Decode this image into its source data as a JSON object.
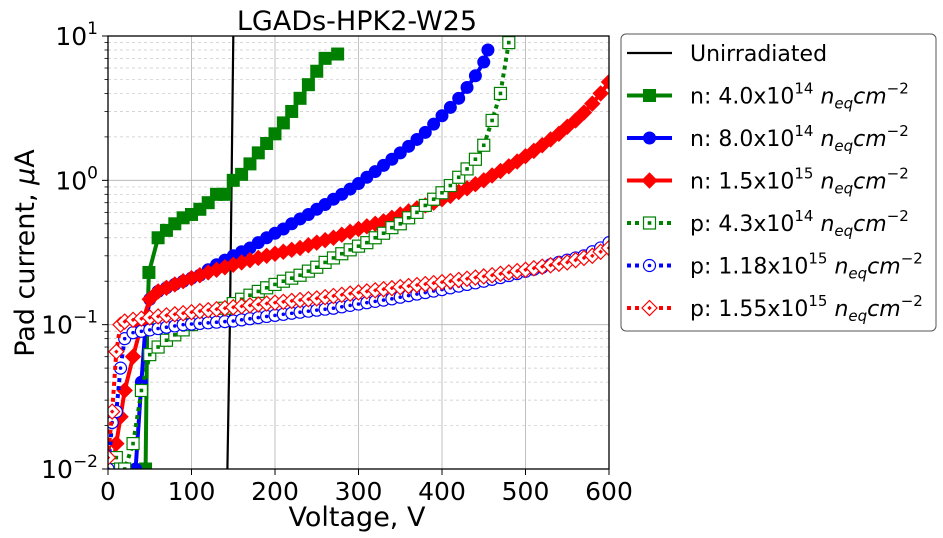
{
  "chart_data": {
    "type": "line",
    "title": "LGADs-HPK2-W25",
    "xlabel": "Voltage, V",
    "ylabel_parts": [
      "Pad current, ",
      "μ",
      "A"
    ],
    "xlim": [
      0,
      600
    ],
    "ylim_log10": [
      -2,
      1
    ],
    "yscale": "log",
    "grid": true,
    "legend_position": "outside-right",
    "x_ticks": [
      {
        "value": 0,
        "label": "0"
      },
      {
        "value": 100,
        "label": "100"
      },
      {
        "value": 200,
        "label": "200"
      },
      {
        "value": 300,
        "label": "300"
      },
      {
        "value": 400,
        "label": "400"
      },
      {
        "value": 500,
        "label": "500"
      },
      {
        "value": 600,
        "label": "600"
      }
    ],
    "y_ticks": [
      {
        "value": 0.01,
        "base": "10",
        "exp": "−2"
      },
      {
        "value": 0.1,
        "base": "10",
        "exp": "−1"
      },
      {
        "value": 1,
        "base": "10",
        "exp": "0"
      },
      {
        "value": 10,
        "base": "10",
        "exp": "1"
      }
    ],
    "series": [
      {
        "name": "Unirradiated",
        "legend": {
          "prefix": "Unirradiated",
          "mantissa": "",
          "exp": ""
        },
        "color": "#000000",
        "dash": "solid",
        "marker": "none",
        "filled": true,
        "width": 2.2,
        "x": [
          143,
          145,
          146,
          147,
          148,
          149,
          150
        ],
        "y": [
          0.01,
          0.05,
          0.1,
          0.3,
          1.0,
          3.0,
          10.0
        ]
      },
      {
        "name": "n: 4.0x10^14 neq cm^-2",
        "legend": {
          "prefix": "n: ",
          "mantissa": "4.0x10",
          "exp": "14"
        },
        "color": "#008000",
        "dash": "solid",
        "marker": "square",
        "filled": true,
        "width": 4,
        "x": [
          45,
          47,
          49,
          60,
          70,
          80,
          90,
          100,
          110,
          120,
          130,
          140,
          150,
          160,
          170,
          180,
          190,
          200,
          210,
          220,
          230,
          240,
          250,
          260,
          275
        ],
        "y": [
          0.01,
          0.1,
          0.23,
          0.4,
          0.45,
          0.5,
          0.55,
          0.58,
          0.63,
          0.7,
          0.8,
          0.8,
          1.0,
          1.1,
          1.3,
          1.55,
          1.8,
          2.1,
          2.5,
          3.0,
          3.7,
          4.6,
          5.7,
          7.0,
          7.5
        ]
      },
      {
        "name": "n: 8.0x10^14 neq cm^-2",
        "legend": {
          "prefix": "n: ",
          "mantissa": "8.0x10",
          "exp": "14"
        },
        "color": "#0000ff",
        "dash": "solid",
        "marker": "circle",
        "filled": true,
        "width": 4,
        "x": [
          33,
          40,
          45,
          50,
          60,
          70,
          80,
          90,
          100,
          110,
          120,
          130,
          140,
          150,
          160,
          170,
          180,
          190,
          200,
          210,
          220,
          230,
          240,
          250,
          260,
          270,
          280,
          290,
          300,
          310,
          320,
          330,
          340,
          350,
          360,
          370,
          380,
          390,
          400,
          410,
          420,
          430,
          440,
          450,
          455
        ],
        "y": [
          0.01,
          0.04,
          0.1,
          0.15,
          0.17,
          0.18,
          0.19,
          0.2,
          0.21,
          0.22,
          0.24,
          0.26,
          0.28,
          0.3,
          0.32,
          0.34,
          0.37,
          0.4,
          0.43,
          0.46,
          0.5,
          0.54,
          0.58,
          0.63,
          0.68,
          0.74,
          0.8,
          0.87,
          0.95,
          1.05,
          1.15,
          1.27,
          1.4,
          1.55,
          1.72,
          1.92,
          2.15,
          2.45,
          2.8,
          3.2,
          3.7,
          4.4,
          5.3,
          6.6,
          8.0
        ]
      },
      {
        "name": "n: 1.5x10^15 neq cm^-2",
        "legend": {
          "prefix": "n: ",
          "mantissa": "1.5x10",
          "exp": "15"
        },
        "color": "#ff0000",
        "dash": "solid",
        "marker": "diamond",
        "filled": true,
        "width": 4,
        "x": [
          5,
          10,
          15,
          20,
          30,
          40,
          50,
          60,
          70,
          80,
          90,
          100,
          110,
          120,
          130,
          140,
          150,
          160,
          170,
          180,
          190,
          200,
          210,
          220,
          230,
          240,
          250,
          260,
          270,
          280,
          290,
          300,
          310,
          320,
          330,
          340,
          350,
          360,
          370,
          380,
          390,
          400,
          410,
          420,
          430,
          440,
          450,
          460,
          470,
          480,
          490,
          500,
          510,
          520,
          530,
          540,
          550,
          560,
          570,
          580,
          590,
          600
        ],
        "y": [
          0.01,
          0.015,
          0.023,
          0.035,
          0.06,
          0.1,
          0.15,
          0.17,
          0.18,
          0.19,
          0.2,
          0.21,
          0.22,
          0.23,
          0.24,
          0.25,
          0.26,
          0.27,
          0.28,
          0.29,
          0.3,
          0.31,
          0.32,
          0.33,
          0.34,
          0.355,
          0.37,
          0.385,
          0.4,
          0.42,
          0.44,
          0.46,
          0.48,
          0.5,
          0.52,
          0.55,
          0.58,
          0.61,
          0.64,
          0.67,
          0.7,
          0.74,
          0.78,
          0.83,
          0.88,
          0.94,
          1.0,
          1.08,
          1.16,
          1.25,
          1.35,
          1.47,
          1.6,
          1.75,
          1.92,
          2.1,
          2.35,
          2.6,
          2.95,
          3.4,
          4.0,
          4.8
        ]
      },
      {
        "name": "p: 4.3x10^14 neq cm^-2",
        "legend": {
          "prefix": "p: ",
          "mantissa": "4.3x10",
          "exp": "14"
        },
        "color": "#008000",
        "dash": "dotted",
        "marker": "square",
        "filled": false,
        "width": 4,
        "x": [
          5,
          10,
          15,
          20,
          30,
          40,
          50,
          60,
          70,
          80,
          90,
          100,
          110,
          120,
          130,
          140,
          150,
          160,
          170,
          180,
          190,
          200,
          210,
          220,
          230,
          240,
          250,
          260,
          270,
          280,
          290,
          300,
          310,
          320,
          330,
          340,
          350,
          360,
          370,
          380,
          390,
          400,
          410,
          420,
          430,
          440,
          450,
          460,
          470,
          480
        ],
        "y": [
          0.01,
          0.012,
          0.01,
          0.01,
          0.015,
          0.035,
          0.062,
          0.07,
          0.078,
          0.085,
          0.092,
          0.1,
          0.107,
          0.113,
          0.121,
          0.13,
          0.14,
          0.15,
          0.16,
          0.17,
          0.18,
          0.19,
          0.2,
          0.21,
          0.22,
          0.235,
          0.25,
          0.27,
          0.29,
          0.31,
          0.33,
          0.35,
          0.37,
          0.4,
          0.43,
          0.47,
          0.5,
          0.55,
          0.6,
          0.67,
          0.74,
          0.82,
          0.92,
          1.05,
          1.2,
          1.4,
          1.75,
          2.6,
          4.0,
          9.0
        ]
      },
      {
        "name": "p: 1.18x10^15 neq cm^-2",
        "legend": {
          "prefix": "p: ",
          "mantissa": "1.18x10",
          "exp": "15"
        },
        "color": "#0000ff",
        "dash": "dotted",
        "marker": "circle",
        "filled": false,
        "width": 4,
        "x": [
          0,
          5,
          10,
          15,
          20,
          30,
          40,
          50,
          60,
          70,
          80,
          90,
          100,
          110,
          120,
          130,
          140,
          150,
          160,
          170,
          180,
          190,
          200,
          210,
          220,
          230,
          240,
          250,
          260,
          270,
          280,
          290,
          300,
          310,
          320,
          330,
          340,
          350,
          360,
          370,
          380,
          390,
          400,
          410,
          420,
          430,
          440,
          450,
          460,
          470,
          480,
          490,
          500,
          510,
          520,
          530,
          540,
          550,
          560,
          570,
          580,
          590,
          600
        ],
        "y": [
          0.01,
          0.021,
          0.025,
          0.05,
          0.08,
          0.088,
          0.09,
          0.092,
          0.094,
          0.096,
          0.098,
          0.1,
          0.101,
          0.102,
          0.103,
          0.104,
          0.105,
          0.106,
          0.108,
          0.11,
          0.112,
          0.114,
          0.116,
          0.118,
          0.12,
          0.122,
          0.124,
          0.126,
          0.128,
          0.13,
          0.133,
          0.136,
          0.139,
          0.142,
          0.145,
          0.148,
          0.151,
          0.155,
          0.159,
          0.163,
          0.167,
          0.171,
          0.175,
          0.18,
          0.185,
          0.19,
          0.195,
          0.2,
          0.206,
          0.212,
          0.219,
          0.226,
          0.234,
          0.242,
          0.25,
          0.26,
          0.27,
          0.28,
          0.29,
          0.3,
          0.32,
          0.34,
          0.37
        ]
      },
      {
        "name": "p: 1.55x10^15 neq cm^-2",
        "legend": {
          "prefix": "p: ",
          "mantissa": "1.55x10",
          "exp": "15"
        },
        "color": "#ff0000",
        "dash": "dotted",
        "marker": "diamond",
        "filled": false,
        "width": 4,
        "x": [
          0,
          5,
          10,
          15,
          20,
          30,
          40,
          50,
          60,
          70,
          80,
          90,
          100,
          110,
          120,
          130,
          140,
          150,
          160,
          170,
          180,
          190,
          200,
          210,
          220,
          230,
          240,
          250,
          260,
          270,
          280,
          290,
          300,
          310,
          320,
          330,
          340,
          350,
          360,
          370,
          380,
          390,
          400,
          410,
          420,
          430,
          440,
          450,
          460,
          470,
          480,
          490,
          500,
          510,
          520,
          530,
          540,
          550,
          560,
          570,
          580,
          590,
          600
        ],
        "y": [
          0.012,
          0.025,
          0.065,
          0.1,
          0.105,
          0.108,
          0.11,
          0.112,
          0.114,
          0.116,
          0.118,
          0.12,
          0.122,
          0.124,
          0.126,
          0.128,
          0.13,
          0.132,
          0.134,
          0.136,
          0.138,
          0.14,
          0.142,
          0.144,
          0.146,
          0.148,
          0.15,
          0.152,
          0.155,
          0.158,
          0.161,
          0.164,
          0.167,
          0.17,
          0.173,
          0.176,
          0.179,
          0.182,
          0.185,
          0.188,
          0.191,
          0.194,
          0.197,
          0.2,
          0.204,
          0.208,
          0.212,
          0.216,
          0.22,
          0.225,
          0.23,
          0.235,
          0.24,
          0.246,
          0.252,
          0.258,
          0.264,
          0.27,
          0.28,
          0.29,
          0.3,
          0.32,
          0.34
        ]
      }
    ],
    "legend_suffix_parts": {
      "n": "n",
      "eq": "eq",
      "cm": "cm",
      "cm_exp": "−2"
    }
  }
}
